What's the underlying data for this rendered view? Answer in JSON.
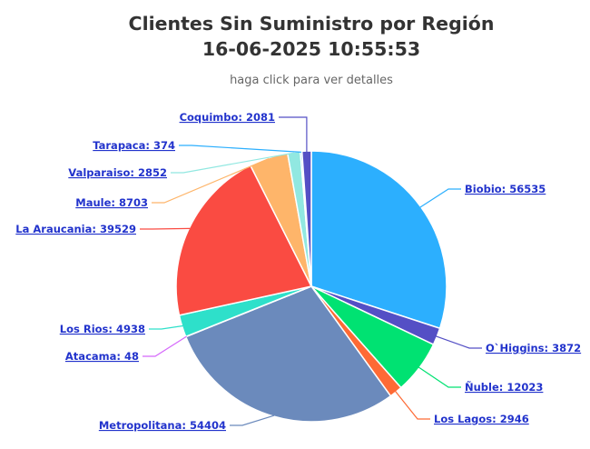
{
  "chart_data": {
    "type": "pie",
    "title_line1": "Clientes Sin Suministro por Región",
    "title_line2": "16-06-2025 10:55:53",
    "subtitle": "haga click para ver detalles",
    "slices": [
      {
        "name": "Biobio",
        "value": 56535,
        "label": "Biobio: 56535",
        "color": "#2caffe"
      },
      {
        "name": "O`Higgins",
        "value": 3872,
        "label": "O`Higgins: 3872",
        "color": "#544fc5"
      },
      {
        "name": "Ñuble",
        "value": 12023,
        "label": "Ñuble: 12023",
        "color": "#00e272"
      },
      {
        "name": "Los Lagos",
        "value": 2946,
        "label": "Los Lagos: 2946",
        "color": "#fe6a35"
      },
      {
        "name": "Metropolitana",
        "value": 54404,
        "label": "Metropolitana: 54404",
        "color": "#6b8abc"
      },
      {
        "name": "Atacama",
        "value": 48,
        "label": "Atacama: 48",
        "color": "#d568fb"
      },
      {
        "name": "Los Rios",
        "value": 4938,
        "label": "Los Rios: 4938",
        "color": "#2ee0ca"
      },
      {
        "name": "La Araucania",
        "value": 39529,
        "label": "La Araucania: 39529",
        "color": "#fa4b42"
      },
      {
        "name": "Maule",
        "value": 8703,
        "label": "Maule: 8703",
        "color": "#feb56a"
      },
      {
        "name": "Valparaiso",
        "value": 2852,
        "label": "Valparaiso: 2852",
        "color": "#91e8e1"
      },
      {
        "name": "Tarapaca",
        "value": 374,
        "label": "Tarapaca: 374",
        "color": "#2caffe"
      },
      {
        "name": "Coquimbo",
        "value": 2081,
        "label": "Coquimbo: 2081",
        "color": "#544fc5"
      }
    ]
  }
}
